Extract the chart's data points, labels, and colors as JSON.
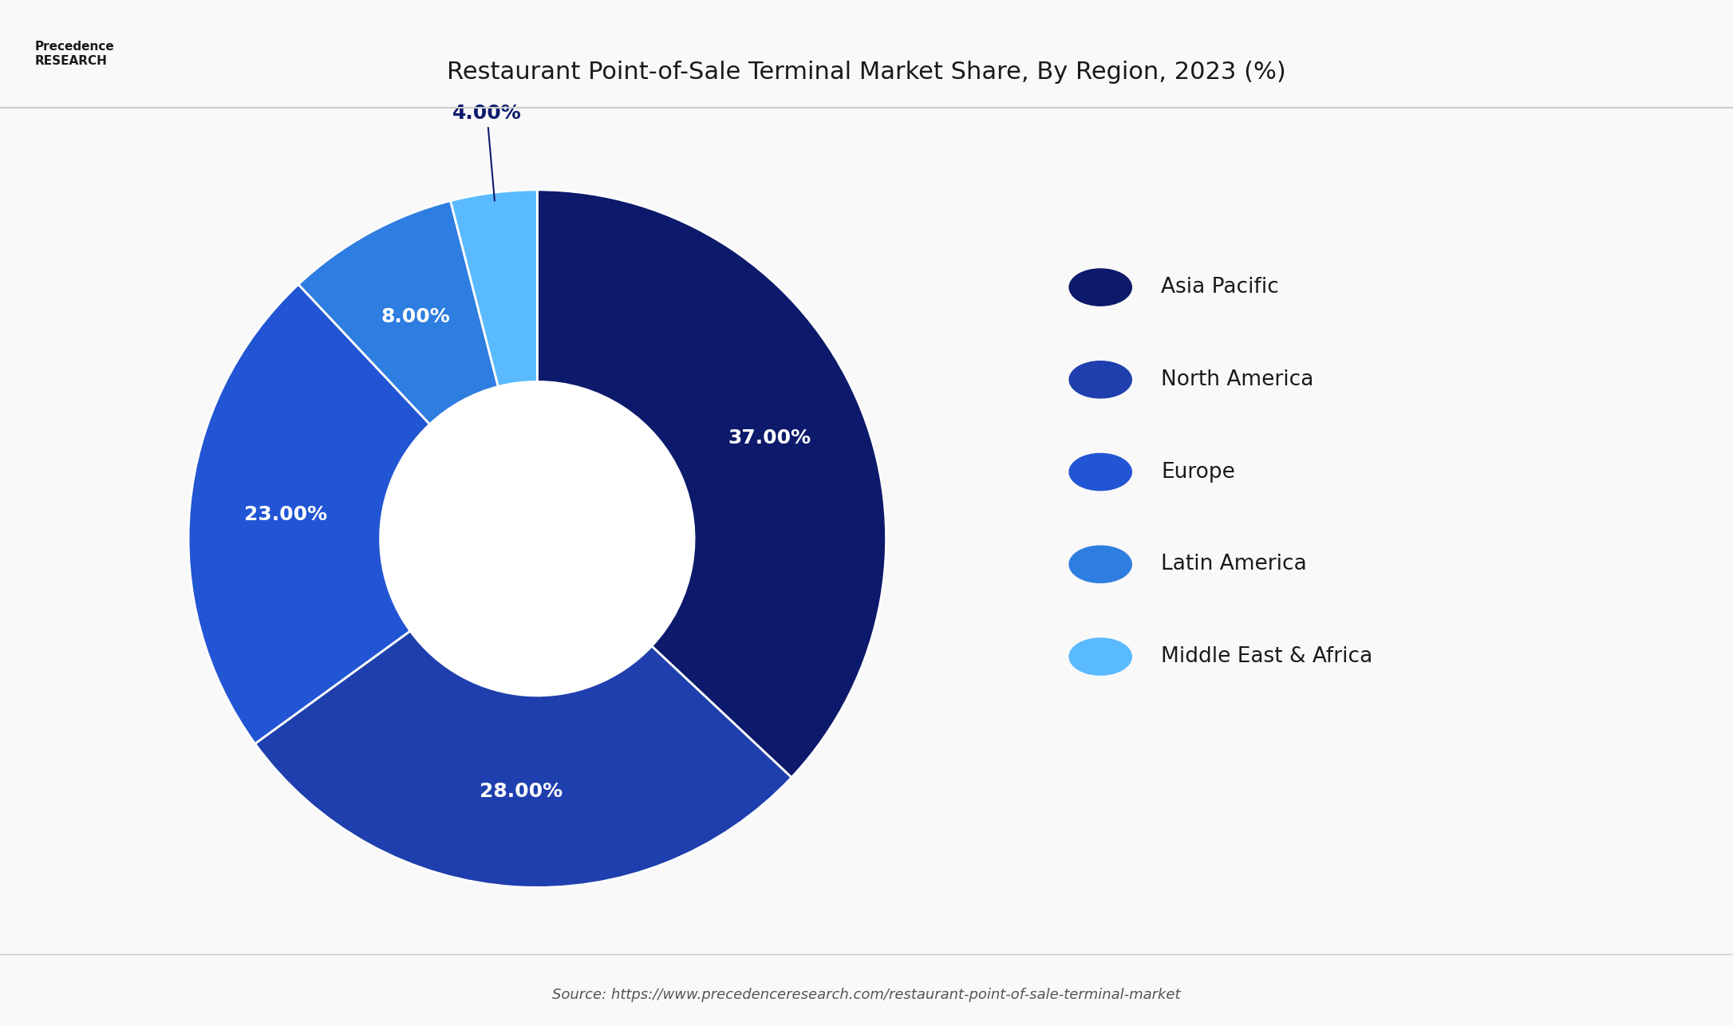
{
  "title": "Restaurant Point-of-Sale Terminal Market Share, By Region, 2023 (%)",
  "labels": [
    "Asia Pacific",
    "North America",
    "Europe",
    "Latin America",
    "Middle East & Africa"
  ],
  "values": [
    37,
    28,
    23,
    8,
    4
  ],
  "colors": [
    "#0d1a6b",
    "#1e3fad",
    "#2255d4",
    "#2e7de0",
    "#5abaff"
  ],
  "pct_labels": [
    "37.00%",
    "28.00%",
    "23.00%",
    "8.00%",
    "4.00%"
  ],
  "background_color": "#f9f9f9",
  "title_fontsize": 22,
  "label_fontsize": 18,
  "legend_fontsize": 19,
  "source_text": "Source: https://www.precedenceresearch.com/restaurant-point-of-sale-terminal-market",
  "source_fontsize": 13
}
